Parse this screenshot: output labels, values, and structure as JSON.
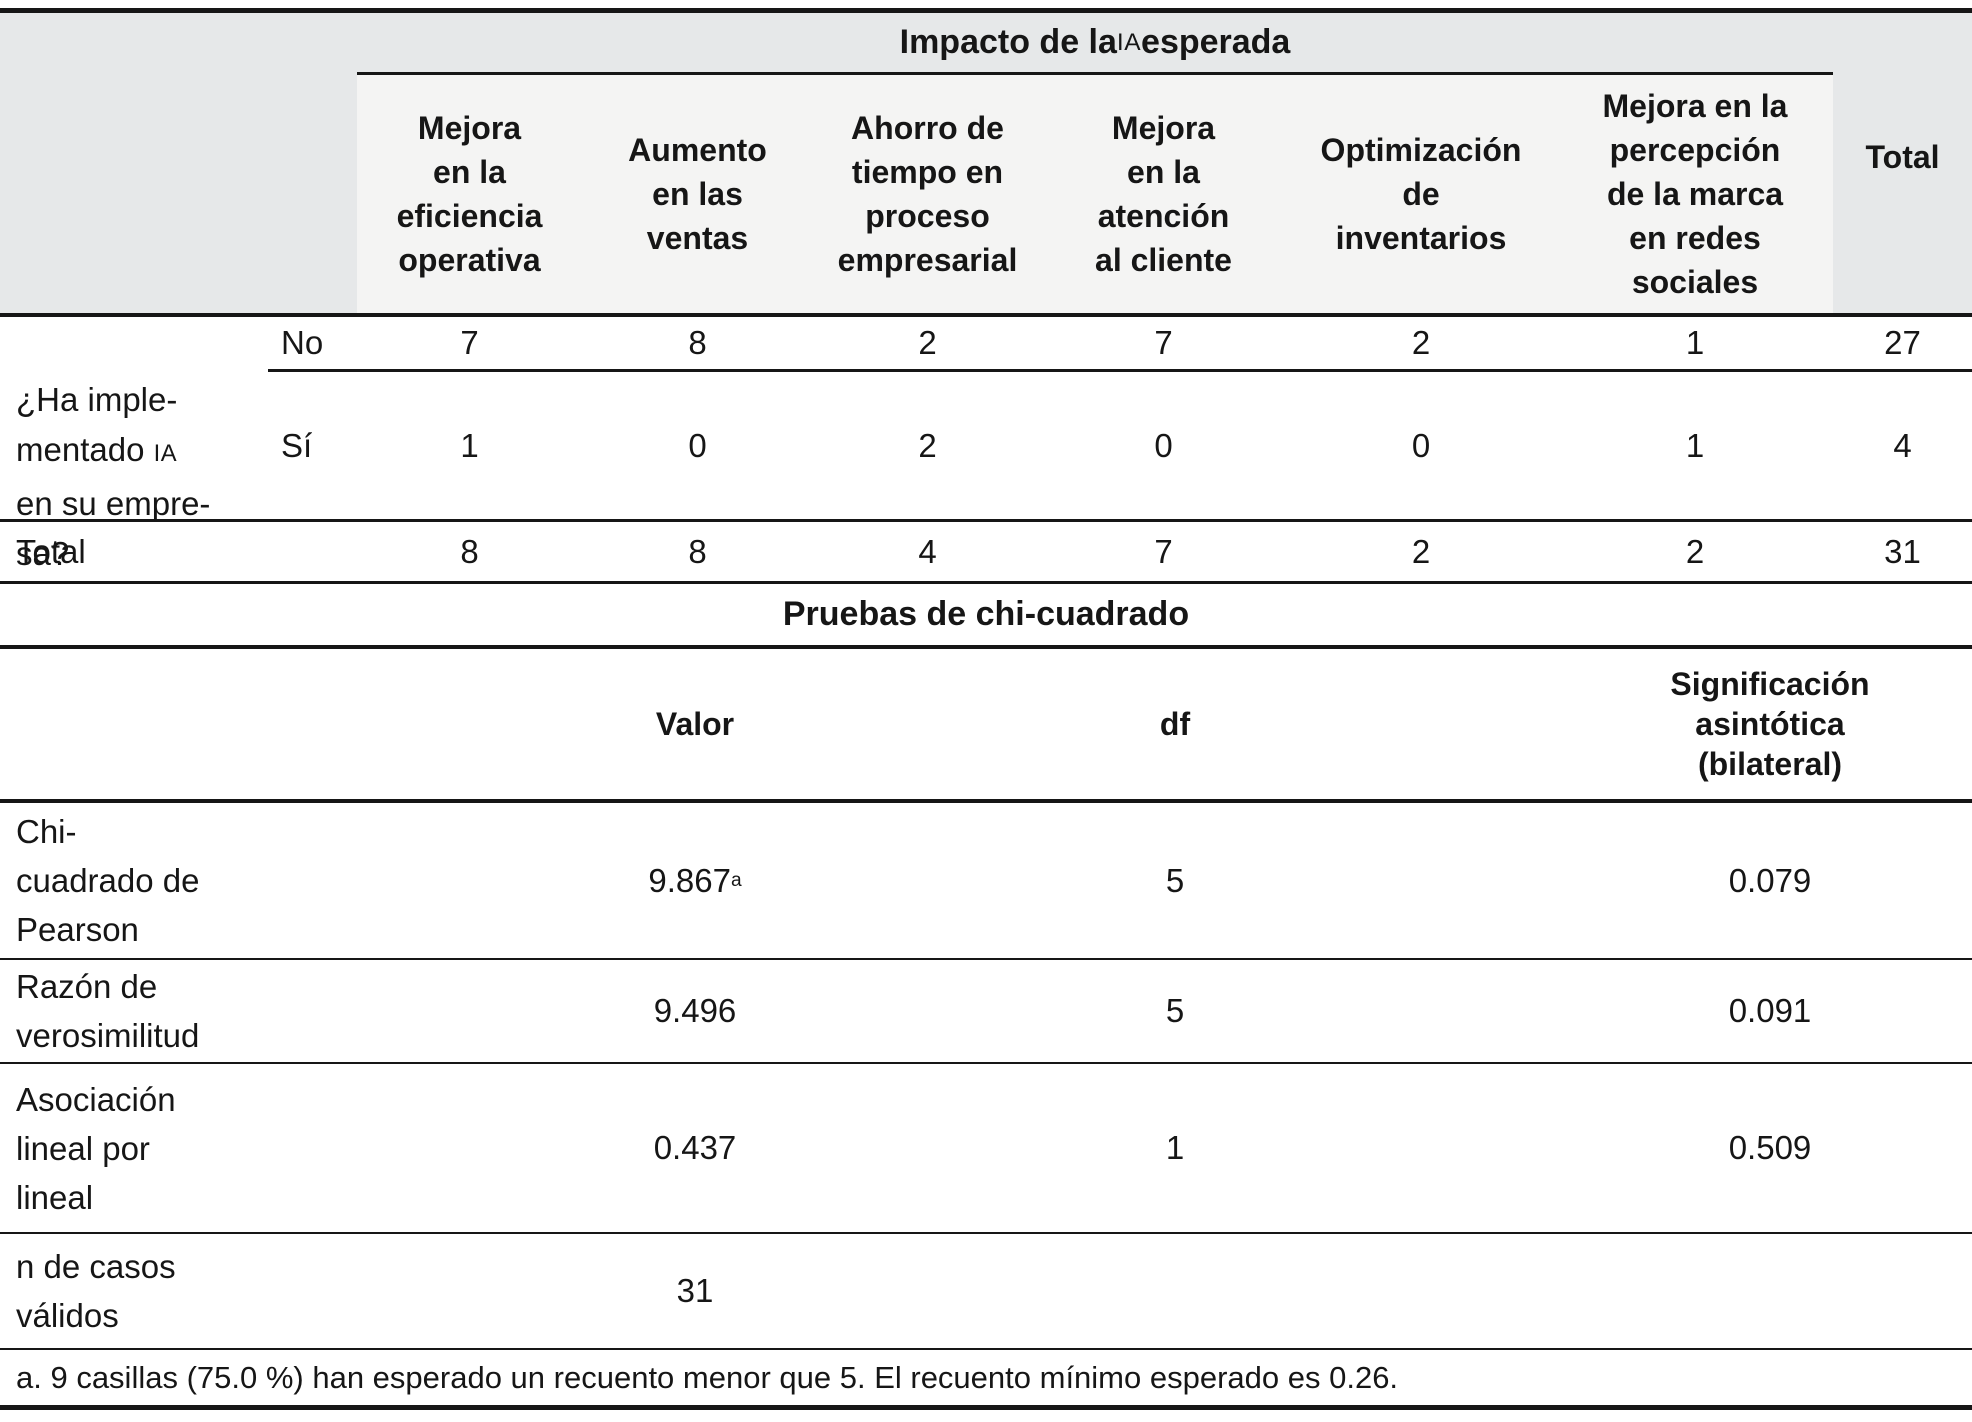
{
  "colors": {
    "band_gray": "#e6e8e9",
    "panel_light": "#f4f4f3",
    "rule_black": "#161616"
  },
  "crosstab": {
    "banner": {
      "part1": "Impacto de la ",
      "ia": "IA",
      "part2": " esperada"
    },
    "col_headers": [
      "Mejora\nen la\neficiencia\noperativa",
      "Aumento\nen las\nventas",
      "Ahorro de\ntiempo en\nproceso\nempresarial",
      "Mejora\nen la\natención\nal cliente",
      "Optimización\nde\ninventarios",
      "Mejora en la\npercepción\nde la marca\nen redes\nsociales"
    ],
    "total_header": "Total",
    "stub": {
      "part1": "¿Ha imple-\nmentado ",
      "ia": "IA",
      "part2": "\nen su empre-\nsa?"
    },
    "rows": [
      {
        "label": "No",
        "values": [
          "7",
          "8",
          "2",
          "7",
          "2",
          "1",
          "27"
        ]
      },
      {
        "label": "Sí",
        "values": [
          "1",
          "0",
          "2",
          "0",
          "0",
          "1",
          "4"
        ]
      }
    ],
    "total_row": {
      "label": "Total",
      "values": [
        "8",
        "8",
        "4",
        "7",
        "2",
        "2",
        "31"
      ]
    }
  },
  "chi": {
    "title": "Pruebas de chi-cuadrado",
    "headers": {
      "valor": "Valor",
      "df": "df",
      "sig": "Significación\nasintótica\n(bilateral)"
    },
    "rows": [
      {
        "label": "Chi-\ncuadrado de\nPearson",
        "valor": "9.867",
        "valor_sup": "a",
        "df": "5",
        "sig": "0.079"
      },
      {
        "label": "Razón de\nverosimilitud",
        "valor": "9.496",
        "valor_sup": "",
        "df": "5",
        "sig": "0.091"
      },
      {
        "label": "Asociación\nlineal por\nlineal",
        "valor": "0.437",
        "valor_sup": "",
        "df": "1",
        "sig": "0.509"
      },
      {
        "label": "n de casos\nválidos",
        "valor": "31",
        "valor_sup": "",
        "df": "",
        "sig": ""
      }
    ],
    "footnote": "a. 9 casillas (75.0 %) han esperado un recuento menor que 5. El recuento mínimo esperado es 0.26."
  }
}
